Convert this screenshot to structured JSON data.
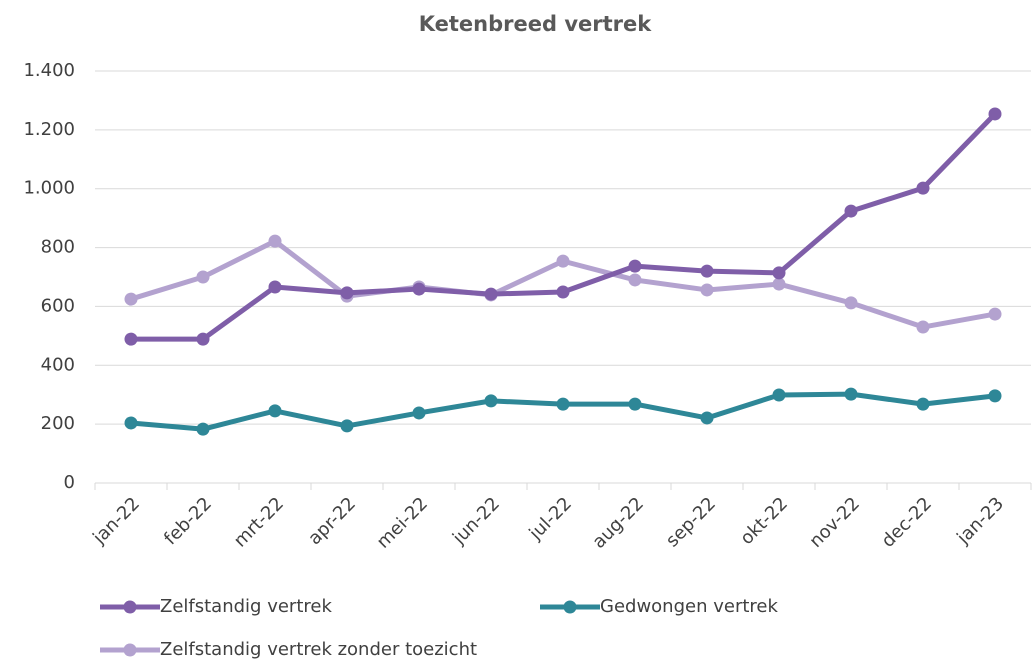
{
  "chart_data": {
    "type": "line",
    "title": "Ketenbreed vertrek",
    "categories": [
      "jan-22",
      "feb-22",
      "mrt-22",
      "apr-22",
      "mei-22",
      "jun-22",
      "jul-22",
      "aug-22",
      "sep-22",
      "okt-22",
      "nov-22",
      "dec-22",
      "jan-23"
    ],
    "series": [
      {
        "name": "Zelfstandig vertrek",
        "color": "#7f5ea8",
        "values": [
          489,
          489,
          666,
          646,
          659,
          642,
          649,
          737,
          720,
          714,
          924,
          1002,
          1254
        ]
      },
      {
        "name": "Gedwongen vertrek",
        "color": "#2e8797",
        "values": [
          204,
          183,
          245,
          194,
          238,
          279,
          268,
          268,
          221,
          299,
          302,
          268,
          296
        ]
      },
      {
        "name": "Zelfstandig vertrek zonder toezicht",
        "color": "#b3a2cf",
        "values": [
          625,
          700,
          822,
          635,
          666,
          639,
          754,
          690,
          656,
          676,
          612,
          530,
          574
        ]
      }
    ],
    "ylim": [
      0,
      1400
    ],
    "yticks": [
      0,
      200,
      400,
      600,
      800,
      {
        "value": 1000,
        "label": "1.000"
      },
      {
        "value": 1200,
        "label": "1.200"
      },
      {
        "value": 1400,
        "label": "1.400"
      }
    ],
    "grid": true
  }
}
